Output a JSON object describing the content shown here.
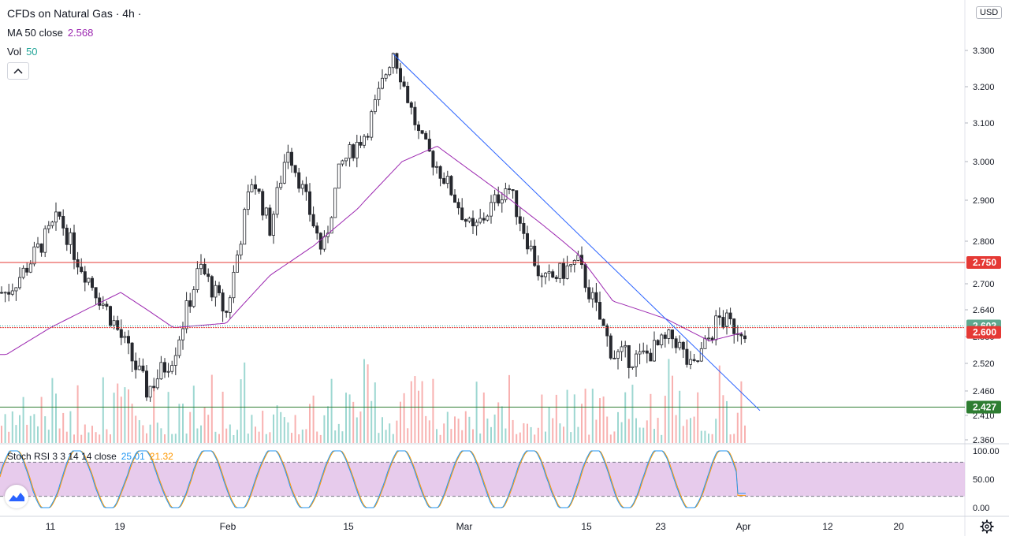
{
  "legend": {
    "title": "CFDs on Natural Gas · 4h ·",
    "ma_label": "MA 50 close",
    "ma_value": "2.568",
    "vol_label": "Vol",
    "vol_value": "50",
    "rsi_label": "Stoch RSI 3 3 14 14 close",
    "rsi_k": "25.01",
    "rsi_d": "21.32"
  },
  "currency": "USD",
  "colors": {
    "up": "#26a69a",
    "down": "#ef5350",
    "candle_body": "#26282e",
    "ma": "#9c27b0",
    "trendline": "#2962ff",
    "red_line": "#e53935",
    "green_line": "#2e7d32",
    "stoch_k": "#2196f3",
    "stoch_d": "#ff9800",
    "band": "#e1bee7"
  },
  "chart_data": {
    "type": "candlestick",
    "timeframe": "4h",
    "title": "CFDs on Natural Gas",
    "price_axis": {
      "ticks": [
        "3.300",
        "3.200",
        "3.100",
        "3.000",
        "2.900",
        "2.800",
        "2.700",
        "2.640",
        "2.580",
        "2.520",
        "2.460",
        "2.410",
        "2.360"
      ],
      "range": [
        2.36,
        3.3
      ]
    },
    "x_axis": {
      "labels": [
        "11",
        "19",
        "Feb",
        "15",
        "Mar",
        "15",
        "23",
        "Apr",
        "12",
        "20"
      ]
    },
    "price_keypoints": [
      {
        "date": "2021-01-06",
        "close": 2.68
      },
      {
        "date": "2021-01-08",
        "close": 2.73
      },
      {
        "date": "2021-01-12",
        "close": 2.86
      },
      {
        "date": "2021-01-14",
        "close": 2.76
      },
      {
        "date": "2021-01-18",
        "close": 2.62
      },
      {
        "date": "2021-01-22",
        "close": 2.46
      },
      {
        "date": "2021-01-25",
        "close": 2.54
      },
      {
        "date": "2021-01-28",
        "close": 2.74
      },
      {
        "date": "2021-01-31",
        "close": 2.63
      },
      {
        "date": "2021-02-03",
        "close": 2.96
      },
      {
        "date": "2021-02-05",
        "close": 2.83
      },
      {
        "date": "2021-02-07",
        "close": 3.04
      },
      {
        "date": "2021-02-11",
        "close": 2.77
      },
      {
        "date": "2021-02-13",
        "close": 2.99
      },
      {
        "date": "2021-02-16",
        "close": 3.08
      },
      {
        "date": "2021-02-19",
        "close": 3.3
      },
      {
        "date": "2021-02-22",
        "close": 3.06
      },
      {
        "date": "2021-02-25",
        "close": 2.95
      },
      {
        "date": "2021-02-28",
        "close": 2.82
      },
      {
        "date": "2021-03-04",
        "close": 2.94
      },
      {
        "date": "2021-03-08",
        "close": 2.7
      },
      {
        "date": "2021-03-12",
        "close": 2.75
      },
      {
        "date": "2021-03-16",
        "close": 2.54
      },
      {
        "date": "2021-03-19",
        "close": 2.53
      },
      {
        "date": "2021-03-23",
        "close": 2.58
      },
      {
        "date": "2021-03-25",
        "close": 2.5
      },
      {
        "date": "2021-03-28",
        "close": 2.62
      },
      {
        "date": "2021-03-30",
        "close": 2.6
      }
    ],
    "ma50_keypoints": [
      {
        "date": "2021-01-06",
        "value": 2.54
      },
      {
        "date": "2021-01-11",
        "value": 2.6
      },
      {
        "date": "2021-01-19",
        "value": 2.68
      },
      {
        "date": "2021-01-25",
        "value": 2.6
      },
      {
        "date": "2021-01-31",
        "value": 2.61
      },
      {
        "date": "2021-02-05",
        "value": 2.72
      },
      {
        "date": "2021-02-10",
        "value": 2.79
      },
      {
        "date": "2021-02-15",
        "value": 2.88
      },
      {
        "date": "2021-02-20",
        "value": 3.0
      },
      {
        "date": "2021-02-24",
        "value": 3.04
      },
      {
        "date": "2021-03-02",
        "value": 2.94
      },
      {
        "date": "2021-03-08",
        "value": 2.84
      },
      {
        "date": "2021-03-12",
        "value": 2.77
      },
      {
        "date": "2021-03-16",
        "value": 2.66
      },
      {
        "date": "2021-03-22",
        "value": 2.62
      },
      {
        "date": "2021-03-27",
        "value": 2.57
      },
      {
        "date": "2021-03-31",
        "value": 2.59
      }
    ],
    "ma_period": 50,
    "last_price": 2.602,
    "horizontal_lines": [
      {
        "price": 2.75,
        "label": "2.750",
        "color": "#e53935"
      },
      {
        "price": 2.6,
        "label": "2.600",
        "color": "#e53935"
      },
      {
        "price": 2.427,
        "label": "2.427",
        "color": "#2e7d32"
      }
    ],
    "trendline": {
      "from": {
        "date": "2021-02-19",
        "price": 3.29
      },
      "to": {
        "date": "2021-04-01",
        "price": 2.42
      }
    },
    "stoch_rsi": {
      "k": 25.01,
      "d": 21.32,
      "levels": [
        80,
        20
      ],
      "axis_labels": [
        "100.00",
        "50.00",
        "0.00"
      ]
    }
  }
}
